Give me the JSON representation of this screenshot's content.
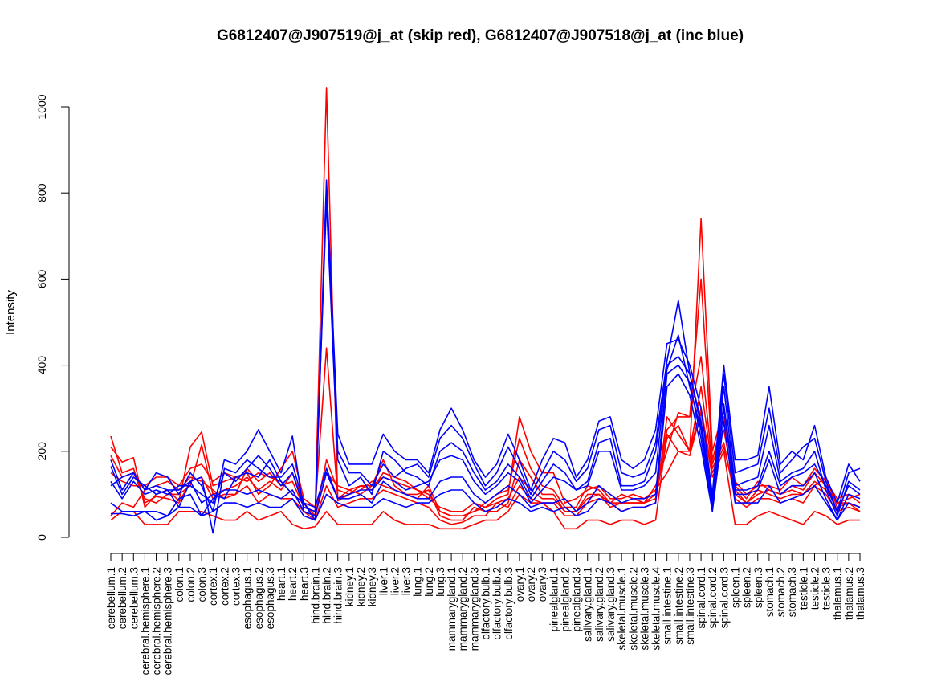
{
  "chart_data": {
    "type": "line",
    "title": "G6812407@J907519@j_at (skip red), G6812407@J907518@j_at (inc blue)",
    "xlabel": "",
    "ylabel": "Intensity",
    "ylim": [
      0,
      1050
    ],
    "yticks": [
      0,
      200,
      400,
      600,
      800,
      1000
    ],
    "grid": false,
    "categories": [
      "cerebellum.1",
      "cerebellum.2",
      "cerebellum.3",
      "cerebral.hemisphere.1",
      "cerebral.hemisphere.2",
      "cerebral.hemisphere.3",
      "colon.1",
      "colon.2",
      "colon.3",
      "cortex.1",
      "cortex.2",
      "cortex.3",
      "esophagus.1",
      "esophagus.2",
      "esophagus.3",
      "heart.1",
      "heart.2",
      "heart.3",
      "hind.brain.1",
      "hind.brain.2",
      "hind.brain.3",
      "kidney.1",
      "kidney.2",
      "kidney.3",
      "liver.1",
      "liver.2",
      "liver.3",
      "lung.1",
      "lung.2",
      "lung.3",
      "mammarygland.1",
      "mammarygland.2",
      "mammarygland.3",
      "olfactory.bulb.1",
      "olfactory.bulb.2",
      "olfactory.bulb.3",
      "ovary.1",
      "ovary.2",
      "ovary.3",
      "pinealgland.1",
      "pinealgland.2",
      "pinealgland.3",
      "salivary.gland.1",
      "salivary.gland.2",
      "salivary.gland.3",
      "skeletal.muscle.1",
      "skeletal.muscle.2",
      "skeletal.muscle.3",
      "skeletal.muscle.4",
      "small.intestine.1",
      "small.intestine.2",
      "small.intestine.3",
      "spinal.cord.1",
      "spinal.cord.2",
      "spinal.cord.3",
      "spleen.1",
      "spleen.2",
      "spleen.3",
      "stomach.1",
      "stomach.2",
      "stomach.3",
      "testicle.1",
      "testicle.2",
      "testicle.3",
      "thalamus.1",
      "thalamus.2",
      "thalamus.3"
    ],
    "series": [
      {
        "color": "#ff0000",
        "values": [
          235,
          150,
          160,
          80,
          95,
          90,
          80,
          130,
          140,
          90,
          100,
          100,
          160,
          130,
          150,
          120,
          130,
          70,
          60,
          1045,
          85,
          100,
          120,
          110,
          150,
          140,
          130,
          110,
          90,
          70,
          60,
          60,
          80,
          70,
          90,
          100,
          280,
          200,
          150,
          150,
          80,
          90,
          110,
          120,
          90,
          90,
          100,
          90,
          110,
          150,
          200,
          200,
          740,
          200,
          300,
          120,
          90,
          130,
          110,
          100,
          120,
          110,
          150,
          120,
          80,
          90,
          100
        ]
      },
      {
        "color": "#ff0000",
        "values": [
          210,
          175,
          185,
          70,
          100,
          110,
          85,
          210,
          245,
          120,
          130,
          140,
          150,
          100,
          120,
          160,
          200,
          90,
          70,
          440,
          90,
          110,
          100,
          120,
          180,
          120,
          100,
          90,
          120,
          60,
          50,
          50,
          60,
          80,
          100,
          110,
          230,
          160,
          120,
          110,
          70,
          70,
          120,
          110,
          80,
          100,
          90,
          80,
          120,
          200,
          290,
          280,
          600,
          180,
          280,
          130,
          100,
          120,
          120,
          110,
          140,
          120,
          160,
          130,
          90,
          100,
          80
        ]
      },
      {
        "color": "#ff0000",
        "values": [
          190,
          140,
          150,
          90,
          80,
          100,
          100,
          120,
          215,
          100,
          110,
          120,
          140,
          110,
          130,
          110,
          150,
          80,
          50,
          180,
          110,
          100,
          110,
          130,
          120,
          110,
          100,
          100,
          110,
          50,
          40,
          40,
          70,
          60,
          60,
          80,
          180,
          140,
          100,
          100,
          60,
          60,
          100,
          100,
          70,
          80,
          80,
          80,
          100,
          250,
          280,
          280,
          420,
          170,
          250,
          110,
          80,
          110,
          100,
          90,
          100,
          100,
          120,
          140,
          70,
          80,
          70
        ]
      },
      {
        "color": "#ff0000",
        "values": [
          50,
          80,
          70,
          110,
          120,
          130,
          110,
          140,
          130,
          110,
          90,
          100,
          120,
          80,
          100,
          90,
          90,
          60,
          40,
          120,
          70,
          80,
          90,
          90,
          110,
          100,
          90,
          80,
          70,
          40,
          30,
          35,
          50,
          50,
          80,
          70,
          120,
          90,
          80,
          80,
          50,
          50,
          80,
          90,
          80,
          60,
          70,
          70,
          80,
          280,
          240,
          200,
          350,
          160,
          220,
          90,
          70,
          90,
          90,
          80,
          90,
          80,
          120,
          100,
          60,
          70,
          60
        ]
      },
      {
        "color": "#ff0000",
        "values": [
          40,
          60,
          60,
          30,
          30,
          30,
          60,
          60,
          60,
          50,
          40,
          40,
          60,
          40,
          50,
          60,
          30,
          20,
          25,
          60,
          30,
          30,
          30,
          30,
          60,
          40,
          30,
          30,
          30,
          20,
          20,
          20,
          30,
          40,
          40,
          60,
          100,
          80,
          80,
          60,
          20,
          20,
          40,
          40,
          30,
          40,
          40,
          30,
          40,
          240,
          200,
          190,
          290,
          140,
          200,
          30,
          30,
          50,
          60,
          50,
          40,
          30,
          60,
          50,
          30,
          40,
          40
        ]
      },
      {
        "color": "#ff0000",
        "values": [
          150,
          130,
          120,
          120,
          140,
          140,
          120,
          160,
          170,
          130,
          150,
          140,
          130,
          150,
          140,
          130,
          100,
          80,
          50,
          150,
          120,
          110,
          120,
          120,
          140,
          130,
          120,
          110,
          100,
          60,
          50,
          50,
          60,
          70,
          80,
          90,
          140,
          110,
          90,
          90,
          60,
          60,
          90,
          100,
          80,
          80,
          80,
          80,
          90,
          230,
          260,
          200,
          300,
          150,
          210,
          100,
          80,
          100,
          110,
          100,
          110,
          100,
          130,
          110,
          80,
          80,
          60
        ]
      },
      {
        "color": "#0000ff",
        "values": [
          180,
          110,
          150,
          110,
          150,
          140,
          100,
          150,
          120,
          60,
          180,
          170,
          200,
          250,
          200,
          150,
          235,
          60,
          50,
          830,
          240,
          170,
          170,
          170,
          240,
          200,
          180,
          180,
          150,
          250,
          300,
          250,
          180,
          140,
          170,
          240,
          180,
          110,
          180,
          230,
          220,
          140,
          180,
          270,
          280,
          180,
          160,
          180,
          250,
          450,
          460,
          400,
          300,
          100,
          400,
          180,
          180,
          190,
          350,
          170,
          200,
          180,
          260,
          140,
          80,
          170,
          130
        ]
      },
      {
        "color": "#0000ff",
        "values": [
          165,
          100,
          140,
          120,
          100,
          110,
          110,
          130,
          140,
          10,
          160,
          150,
          180,
          160,
          140,
          140,
          170,
          80,
          40,
          800,
          200,
          150,
          150,
          120,
          170,
          140,
          160,
          170,
          140,
          230,
          260,
          230,
          170,
          120,
          150,
          210,
          160,
          100,
          150,
          200,
          180,
          130,
          160,
          250,
          260,
          150,
          140,
          150,
          220,
          410,
          550,
          380,
          270,
          90,
          380,
          150,
          160,
          170,
          300,
          150,
          180,
          210,
          230,
          130,
          60,
          150,
          160
        ]
      },
      {
        "color": "#0000ff",
        "values": [
          130,
          90,
          130,
          100,
          110,
          100,
          120,
          120,
          100,
          80,
          150,
          130,
          160,
          190,
          160,
          120,
          150,
          70,
          60,
          780,
          180,
          120,
          140,
          100,
          200,
          180,
          150,
          140,
          120,
          200,
          220,
          200,
          150,
          110,
          130,
          170,
          140,
          90,
          130,
          170,
          150,
          110,
          130,
          220,
          230,
          120,
          120,
          130,
          200,
          390,
          470,
          350,
          250,
          80,
          350,
          120,
          130,
          140,
          260,
          130,
          150,
          160,
          200,
          110,
          50,
          130,
          110
        ]
      },
      {
        "color": "#0000ff",
        "values": [
          80,
          60,
          60,
          60,
          40,
          50,
          90,
          100,
          50,
          90,
          110,
          110,
          100,
          110,
          100,
          90,
          110,
          60,
          50,
          150,
          90,
          90,
          100,
          80,
          130,
          110,
          100,
          90,
          90,
          130,
          140,
          140,
          100,
          80,
          100,
          120,
          100,
          70,
          80,
          80,
          90,
          60,
          80,
          120,
          100,
          80,
          90,
          90,
          100,
          380,
          400,
          360,
          230,
          70,
          300,
          100,
          100,
          110,
          180,
          100,
          120,
          120,
          150,
          90,
          40,
          100,
          90
        ]
      },
      {
        "color": "#0000ff",
        "values": [
          55,
          55,
          50,
          60,
          60,
          50,
          70,
          70,
          50,
          60,
          80,
          80,
          70,
          80,
          70,
          70,
          90,
          50,
          40,
          100,
          80,
          70,
          70,
          70,
          90,
          80,
          70,
          80,
          80,
          100,
          110,
          110,
          80,
          60,
          70,
          90,
          80,
          60,
          70,
          60,
          70,
          50,
          60,
          90,
          80,
          60,
          70,
          70,
          80,
          350,
          380,
          330,
          210,
          60,
          270,
          80,
          80,
          80,
          120,
          80,
          90,
          100,
          120,
          80,
          40,
          80,
          70
        ]
      },
      {
        "color": "#0000ff",
        "values": [
          120,
          140,
          150,
          110,
          120,
          110,
          70,
          130,
          80,
          100,
          90,
          140,
          150,
          140,
          180,
          130,
          100,
          80,
          70,
          160,
          90,
          100,
          110,
          110,
          140,
          130,
          110,
          120,
          130,
          180,
          190,
          180,
          130,
          100,
          120,
          150,
          130,
          80,
          110,
          140,
          130,
          110,
          120,
          200,
          200,
          110,
          110,
          120,
          150,
          400,
          420,
          380,
          260,
          80,
          310,
          110,
          110,
          120,
          200,
          120,
          140,
          150,
          170,
          120,
          60,
          120,
          100
        ]
      }
    ]
  }
}
